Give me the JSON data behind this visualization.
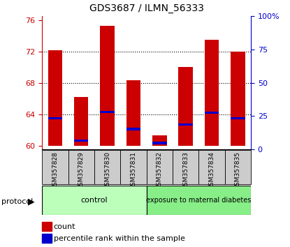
{
  "title": "GDS3687 / ILMN_56333",
  "samples": [
    "GSM357828",
    "GSM357829",
    "GSM357830",
    "GSM357831",
    "GSM357832",
    "GSM357833",
    "GSM357834",
    "GSM357835"
  ],
  "count_values": [
    72.1,
    66.2,
    75.3,
    68.3,
    61.3,
    70.0,
    73.5,
    72.0
  ],
  "percentile_values": [
    63.5,
    60.6,
    64.3,
    62.1,
    60.3,
    62.7,
    64.2,
    63.5
  ],
  "ylim_left": [
    59.5,
    76.5
  ],
  "ylim_right": [
    0,
    100
  ],
  "yticks_left": [
    60,
    64,
    68,
    72,
    76
  ],
  "yticks_right": [
    0,
    25,
    50,
    75,
    100
  ],
  "ytick_labels_right": [
    "0",
    "25",
    "50",
    "75",
    "100%"
  ],
  "bar_bottom": 60.0,
  "bar_color": "#cc0000",
  "percentile_color": "#0000cc",
  "control_color": "#bbffbb",
  "diabetes_color": "#88ee88",
  "control_label": "control",
  "diabetes_label": "exposure to maternal diabetes",
  "protocol_label": "protocol",
  "legend_count_label": "count",
  "legend_percentile_label": "percentile rank within the sample",
  "left_axis_color": "#cc0000",
  "right_axis_color": "#0000cc",
  "xtick_bg_color": "#cccccc",
  "dotted_grid_levels": [
    64,
    68,
    72
  ],
  "bar_width": 0.55,
  "percentile_bar_height": 0.3,
  "n_control": 4,
  "n_diabetes": 4
}
